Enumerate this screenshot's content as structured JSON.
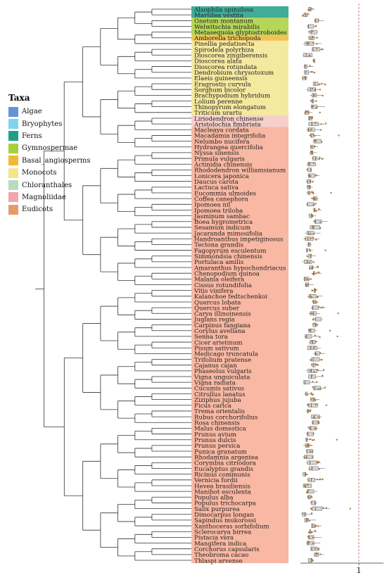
{
  "legend": {
    "title": "Taxa",
    "items": [
      {
        "label": "Algae",
        "color": "#5f95d8"
      },
      {
        "label": "Bryophytes",
        "color": "#7ed4ec"
      },
      {
        "label": "Ferns",
        "color": "#1f9e87"
      },
      {
        "label": "Gymnospermae",
        "color": "#a8cf3a"
      },
      {
        "label": "Basal_angiosperms",
        "color": "#efb935"
      },
      {
        "label": "Monocots",
        "color": "#f3e48e"
      },
      {
        "label": "Chloranthales",
        "color": "#b9dcbc"
      },
      {
        "label": "Magnoliidae",
        "color": "#f2a5ae"
      },
      {
        "label": "Eudicots",
        "color": "#e99a6b"
      }
    ]
  },
  "chart_data": {
    "type": "boxplot",
    "title": "",
    "xlabel": "",
    "ylabel": "",
    "x_tick_labels": [
      "1"
    ],
    "reference_line_x": 1,
    "xlim": [
      0,
      1.5
    ],
    "species": [
      {
        "name": "Alsophila spinulosa",
        "group": "Ferns"
      },
      {
        "name": "Marsilea vestita",
        "group": "Ferns"
      },
      {
        "name": "Gnetum montanum",
        "group": "Gymnospermae"
      },
      {
        "name": "Welwitschia mirabilis",
        "group": "Gymnospermae"
      },
      {
        "name": "Metasequoia glyptostroboides",
        "group": "Gymnospermae"
      },
      {
        "name": "Amborella trichopoda",
        "group": "Basal_angiosperms"
      },
      {
        "name": "Pinellia pedatisecta",
        "group": "Monocots"
      },
      {
        "name": "Spirodela polyrhiza",
        "group": "Monocots"
      },
      {
        "name": "Dioscorea zingiberensis",
        "group": "Monocots"
      },
      {
        "name": "Dioscorea alata",
        "group": "Monocots"
      },
      {
        "name": "Dioscorea rotundata",
        "group": "Monocots"
      },
      {
        "name": "Dendrobium chrysotoxum",
        "group": "Monocots"
      },
      {
        "name": "Elaeis guineensis",
        "group": "Monocots"
      },
      {
        "name": "Eragrostis curvula",
        "group": "Monocots"
      },
      {
        "name": "Sorghum bicolor",
        "group": "Monocots"
      },
      {
        "name": "Brachypodium hybridum",
        "group": "Monocots"
      },
      {
        "name": "Lolium perenne",
        "group": "Monocots"
      },
      {
        "name": "Thinopyrum elongatum",
        "group": "Monocots"
      },
      {
        "name": "Triticum urartu",
        "group": "Monocots"
      },
      {
        "name": "Liriodendron chinense",
        "group": "Magnoliidae"
      },
      {
        "name": "Aristolochia fimbriata",
        "group": "Magnoliidae"
      },
      {
        "name": "Macleaya cordata",
        "group": "Eudicots"
      },
      {
        "name": "Macadamia integrifolia",
        "group": "Eudicots"
      },
      {
        "name": "Nelumbo nucifera",
        "group": "Eudicots"
      },
      {
        "name": "Hydrangea quercifolia",
        "group": "Eudicots"
      },
      {
        "name": "Nyssa sinensis",
        "group": "Eudicots"
      },
      {
        "name": "Primula vulgaris",
        "group": "Eudicots"
      },
      {
        "name": "Actinidia chinensis",
        "group": "Eudicots"
      },
      {
        "name": "Rhododendron williamsianum",
        "group": "Eudicots"
      },
      {
        "name": "Lonicera japonica",
        "group": "Eudicots"
      },
      {
        "name": "Daucus carota",
        "group": "Eudicots"
      },
      {
        "name": "Lactuca sativa",
        "group": "Eudicots"
      },
      {
        "name": "Eucommia ulmoides",
        "group": "Eudicots"
      },
      {
        "name": "Coffea canephora",
        "group": "Eudicots"
      },
      {
        "name": "Ipomoea nil",
        "group": "Eudicots"
      },
      {
        "name": "Ipomoea triloba",
        "group": "Eudicots"
      },
      {
        "name": "Jasminum sambac",
        "group": "Eudicots"
      },
      {
        "name": "Boea hygrometrica",
        "group": "Eudicots"
      },
      {
        "name": "Sesamum indicum",
        "group": "Eudicots"
      },
      {
        "name": "Jacaranda mimosifolia",
        "group": "Eudicots"
      },
      {
        "name": "Handroanthus impetiginosus",
        "group": "Eudicots"
      },
      {
        "name": "Tectona grandis",
        "group": "Eudicots"
      },
      {
        "name": "Fagopyrum esculentum",
        "group": "Eudicots"
      },
      {
        "name": "Simmondsia chinensis",
        "group": "Eudicots"
      },
      {
        "name": "Portulaca amilis",
        "group": "Eudicots"
      },
      {
        "name": "Amaranthus hypochondriacus",
        "group": "Eudicots"
      },
      {
        "name": "Chenopodium quinoa",
        "group": "Eudicots"
      },
      {
        "name": "Malania oleifera",
        "group": "Eudicots"
      },
      {
        "name": "Cissus rotundifolia",
        "group": "Eudicots"
      },
      {
        "name": "Vitis vinifera",
        "group": "Eudicots"
      },
      {
        "name": "Kalanchoe fedtschenkoi",
        "group": "Eudicots"
      },
      {
        "name": "Quercus lobata",
        "group": "Eudicots"
      },
      {
        "name": "Quercus suber",
        "group": "Eudicots"
      },
      {
        "name": "Carya illinoinensis",
        "group": "Eudicots"
      },
      {
        "name": "Juglans regia",
        "group": "Eudicots"
      },
      {
        "name": "Carpinus fangiana",
        "group": "Eudicots"
      },
      {
        "name": "Corylus avellana",
        "group": "Eudicots"
      },
      {
        "name": "Senna tora",
        "group": "Eudicots"
      },
      {
        "name": "Cicer arietinum",
        "group": "Eudicots"
      },
      {
        "name": "Pisum sativum",
        "group": "Eudicots"
      },
      {
        "name": "Medicago truncatula",
        "group": "Eudicots"
      },
      {
        "name": "Trifolium pratense",
        "group": "Eudicots"
      },
      {
        "name": "Cajanus cajan",
        "group": "Eudicots"
      },
      {
        "name": "Phaseolus vulgaris",
        "group": "Eudicots"
      },
      {
        "name": "Vigna unguiculata",
        "group": "Eudicots"
      },
      {
        "name": "Vigna radiata",
        "group": "Eudicots"
      },
      {
        "name": "Cucumis sativus",
        "group": "Eudicots"
      },
      {
        "name": "Citrullus lanatus",
        "group": "Eudicots"
      },
      {
        "name": "Ziziphus jujuba",
        "group": "Eudicots"
      },
      {
        "name": "Ficus carica",
        "group": "Eudicots"
      },
      {
        "name": "Trema orientalis",
        "group": "Eudicots"
      },
      {
        "name": "Rubus corchorifolius",
        "group": "Eudicots"
      },
      {
        "name": "Rosa chinensis",
        "group": "Eudicots"
      },
      {
        "name": "Malus domestica",
        "group": "Eudicots"
      },
      {
        "name": "Prunus avium",
        "group": "Eudicots"
      },
      {
        "name": "Prunus dulcis",
        "group": "Eudicots"
      },
      {
        "name": "Prunus persica",
        "group": "Eudicots"
      },
      {
        "name": "Punica granatum",
        "group": "Eudicots"
      },
      {
        "name": "Rhodamnia argentea",
        "group": "Eudicots"
      },
      {
        "name": "Corymbia citriodora",
        "group": "Eudicots"
      },
      {
        "name": "Eucalyptus grandis",
        "group": "Eudicots"
      },
      {
        "name": "Ricinus communis",
        "group": "Eudicots"
      },
      {
        "name": "Vernicia fordii",
        "group": "Eudicots"
      },
      {
        "name": "Hevea brasiliensis",
        "group": "Eudicots"
      },
      {
        "name": "Manihot esculenta",
        "group": "Eudicots"
      },
      {
        "name": "Populus alba",
        "group": "Eudicots"
      },
      {
        "name": "Populus trichocarpa",
        "group": "Eudicots"
      },
      {
        "name": "Salix purpurea",
        "group": "Eudicots"
      },
      {
        "name": "Dimocarpus longan",
        "group": "Eudicots"
      },
      {
        "name": "Sapindus mukorossi",
        "group": "Eudicots"
      },
      {
        "name": "Xanthoceras sorbifolium",
        "group": "Eudicots"
      },
      {
        "name": "Sclerocarya birrea",
        "group": "Eudicots"
      },
      {
        "name": "Pistacia vera",
        "group": "Eudicots"
      },
      {
        "name": "Mangifera indica",
        "group": "Eudicots"
      },
      {
        "name": "Corchorus capsularis",
        "group": "Eudicots"
      },
      {
        "name": "Theobroma cacao",
        "group": "Eudicots"
      },
      {
        "name": "Thlaspi arvense",
        "group": "Eudicots"
      }
    ]
  }
}
